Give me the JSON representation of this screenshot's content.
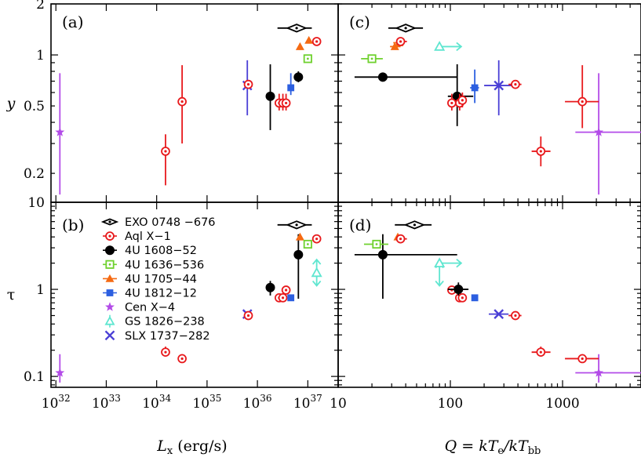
{
  "chart_data": {
    "type": "scatter",
    "sources": [
      {
        "name": "EXO 0748 −676",
        "color": "#000000",
        "marker": "diamond-dot"
      },
      {
        "name": "Aql X−1",
        "color": "#e8191c",
        "marker": "circle-open-dot"
      },
      {
        "name": "4U 1608−52",
        "color": "#000000",
        "marker": "circle-filled"
      },
      {
        "name": "4U 1636−536",
        "color": "#6fd12e",
        "marker": "square-open-dot"
      },
      {
        "name": "4U 1705−44",
        "color": "#f56a12",
        "marker": "triangle-filled"
      },
      {
        "name": "4U 1812−12",
        "color": "#2c5fe0",
        "marker": "square-filled"
      },
      {
        "name": "Cen  X−4",
        "color": "#b34be8",
        "marker": "star"
      },
      {
        "name": "GS 1826−238",
        "color": "#5fe6d0",
        "marker": "triangle-open-arrow"
      },
      {
        "name": "SLX 1737−282",
        "color": "#4a3fd6",
        "marker": "cross-x"
      }
    ],
    "panels": [
      {
        "id": "a",
        "label": "(a)",
        "xscale": "log",
        "yscale": "log",
        "xlim": [
          8e+31,
          4e+37
        ],
        "ylim": [
          0.135,
          2.0
        ],
        "xlabel": "",
        "ylabel": "y",
        "points": [
          {
            "source": 6,
            "x": 1.2e+32,
            "y": 0.35,
            "yerr": [
              0.15,
              0.78
            ]
          },
          {
            "source": 1,
            "x": 1.5e+34,
            "y": 0.27,
            "yerr": [
              0.17,
              0.34
            ]
          },
          {
            "source": 1,
            "x": 3.2e+34,
            "y": 0.53,
            "yerr": [
              0.3,
              0.87
            ]
          },
          {
            "source": 8,
            "x": 6.3e+35,
            "y": 0.66,
            "yerr": [
              0.44,
              0.93
            ]
          },
          {
            "source": 1,
            "x": 6.6e+35,
            "y": 0.67
          },
          {
            "source": 2,
            "x": 1.8e+36,
            "y": 0.57,
            "yerr": [
              0.36,
              0.88
            ]
          },
          {
            "source": 1,
            "x": 2.7e+36,
            "y": 0.52,
            "yerr": [
              0.47,
              0.59
            ]
          },
          {
            "source": 1,
            "x": 3.2e+36,
            "y": 0.52,
            "yerr": [
              0.47,
              0.59
            ]
          },
          {
            "source": 1,
            "x": 3.7e+36,
            "y": 0.52,
            "yerr": [
              0.47,
              0.59
            ]
          },
          {
            "source": 5,
            "x": 4.6e+36,
            "y": 0.64,
            "yerr": [
              0.58,
              0.78
            ]
          },
          {
            "source": 2,
            "x": 6.5e+36,
            "y": 0.74,
            "yerr": [
              0.69,
              0.8
            ]
          },
          {
            "source": 4,
            "x": 7e+36,
            "y": 1.12,
            "yerr": [
              1.07,
              1.17
            ]
          },
          {
            "source": 3,
            "x": 1e+37,
            "y": 0.95,
            "yerr": [
              0.91,
              0.99
            ]
          },
          {
            "source": 4,
            "x": 1.05e+37,
            "y": 1.22
          },
          {
            "source": 1,
            "x": 1.5e+37,
            "y": 1.2
          },
          {
            "source": 0,
            "x": 6e+36,
            "y": 1.44,
            "xerr": [
              2.5e+36,
              1.2e+37
            ]
          }
        ]
      },
      {
        "id": "b",
        "label": "(b)",
        "xscale": "log",
        "yscale": "log",
        "xlim": [
          8e+31,
          4e+37
        ],
        "ylim": [
          0.075,
          10
        ],
        "xlabel": "L_x (erg/s)",
        "ylabel": "τ",
        "points": [
          {
            "source": 6,
            "x": 1.2e+32,
            "y": 0.11,
            "yerr": [
              0.085,
              0.18
            ]
          },
          {
            "source": 1,
            "x": 1.5e+34,
            "y": 0.19,
            "yerr": [
              0.17,
              0.22
            ]
          },
          {
            "source": 1,
            "x": 3.2e+34,
            "y": 0.16,
            "yerr": [
              0.15,
              0.18
            ]
          },
          {
            "source": 8,
            "x": 6.3e+35,
            "y": 0.52
          },
          {
            "source": 1,
            "x": 6.6e+35,
            "y": 0.5
          },
          {
            "source": 2,
            "x": 1.8e+36,
            "y": 1.05,
            "yerr": [
              0.85,
              1.25
            ]
          },
          {
            "source": 1,
            "x": 2.7e+36,
            "y": 0.8
          },
          {
            "source": 1,
            "x": 3.2e+36,
            "y": 0.8
          },
          {
            "source": 1,
            "x": 3.7e+36,
            "y": 0.98
          },
          {
            "source": 5,
            "x": 4.6e+36,
            "y": 0.8
          },
          {
            "source": 2,
            "x": 6.5e+36,
            "y": 2.5,
            "yerr": [
              0.78,
              4.3
            ]
          },
          {
            "source": 4,
            "x": 7e+36,
            "y": 4.0
          },
          {
            "source": 3,
            "x": 1e+37,
            "y": 3.3
          },
          {
            "source": 1,
            "x": 1.5e+37,
            "y": 3.8
          },
          {
            "source": 7,
            "x": 1.5e+37,
            "y": 1.55,
            "yerr": [
              1.1,
              2.2
            ]
          },
          {
            "source": 0,
            "x": 6e+36,
            "y": 5.5,
            "xerr": [
              2.5e+36,
              1.2e+37
            ]
          }
        ]
      },
      {
        "id": "c",
        "label": "(c)",
        "xscale": "log",
        "yscale": "log",
        "xlim": [
          10,
          5000
        ],
        "ylim": [
          0.135,
          2.0
        ],
        "xlabel": "",
        "ylabel": "",
        "points": [
          {
            "source": 6,
            "x": 2100,
            "y": 0.35,
            "xerr": [
              1300,
              5000
            ],
            "yerr": [
              0.15,
              0.78
            ]
          },
          {
            "source": 1,
            "x": 640,
            "y": 0.27,
            "xerr": [
              530,
              780
            ],
            "yerr": [
              0.22,
              0.33
            ]
          },
          {
            "source": 1,
            "x": 1500,
            "y": 0.53,
            "xerr": [
              1050,
              2100
            ],
            "yerr": [
              0.37,
              0.87
            ]
          },
          {
            "source": 8,
            "x": 270,
            "y": 0.66,
            "xerr": [
              200,
              380
            ],
            "yerr": [
              0.44,
              0.93
            ]
          },
          {
            "source": 1,
            "x": 380,
            "y": 0.67,
            "xerr": [
              330,
              430
            ]
          },
          {
            "source": 5,
            "x": 165,
            "y": 0.64,
            "xerr": [
              150,
              180
            ],
            "yerr": [
              0.52,
              0.82
            ]
          },
          {
            "source": 2,
            "x": 25,
            "y": 0.74,
            "xerr": [
              14,
              115
            ]
          },
          {
            "source": 2,
            "x": 115,
            "y": 0.57,
            "xerr": [
              95,
              160
            ],
            "yerr": [
              0.38,
              0.88
            ]
          },
          {
            "source": 1,
            "x": 103,
            "y": 0.52,
            "yerr": [
              0.47,
              0.59
            ]
          },
          {
            "source": 1,
            "x": 121,
            "y": 0.52,
            "yerr": [
              0.47,
              0.59
            ]
          },
          {
            "source": 1,
            "x": 128,
            "y": 0.54,
            "yerr": [
              0.49,
              0.6
            ]
          },
          {
            "source": 3,
            "x": 20,
            "y": 0.95,
            "xerr": [
              16,
              25
            ]
          },
          {
            "source": 4,
            "x": 32,
            "y": 1.12,
            "xerr": [
              29,
              36
            ]
          },
          {
            "source": 4,
            "x": 35,
            "y": 1.18,
            "xerr": [
              31,
              39
            ]
          },
          {
            "source": 1,
            "x": 36,
            "y": 1.2,
            "xerr": [
              33,
              41
            ]
          },
          {
            "source": 7,
            "x": 80,
            "y": 1.12,
            "xerr": [
              80,
              125
            ]
          },
          {
            "source": 0,
            "x": 40,
            "y": 1.44,
            "xerr": [
              28,
              57
            ]
          }
        ]
      },
      {
        "id": "d",
        "label": "(d)",
        "xscale": "log",
        "yscale": "log",
        "xlim": [
          10,
          5000
        ],
        "ylim": [
          0.075,
          10
        ],
        "xlabel": "Q = kT_e/kT_bb",
        "ylabel": "",
        "points": [
          {
            "source": 6,
            "x": 2100,
            "y": 0.11,
            "xerr": [
              1300,
              5000
            ],
            "yerr": [
              0.085,
              0.18
            ]
          },
          {
            "source": 1,
            "x": 640,
            "y": 0.19,
            "xerr": [
              530,
              780
            ],
            "yerr": [
              0.17,
              0.22
            ]
          },
          {
            "source": 1,
            "x": 1500,
            "y": 0.16,
            "xerr": [
              1050,
              2100
            ],
            "yerr": [
              0.15,
              0.18
            ]
          },
          {
            "source": 8,
            "x": 270,
            "y": 0.52,
            "xerr": [
              220,
              330
            ]
          },
          {
            "source": 1,
            "x": 380,
            "y": 0.5,
            "xerr": [
              330,
              430
            ]
          },
          {
            "source": 5,
            "x": 165,
            "y": 0.8
          },
          {
            "source": 1,
            "x": 121,
            "y": 0.8
          },
          {
            "source": 1,
            "x": 128,
            "y": 0.8
          },
          {
            "source": 1,
            "x": 103,
            "y": 0.98
          },
          {
            "source": 2,
            "x": 118,
            "y": 1.0,
            "xerr": [
              95,
              145
            ],
            "yerr": [
              0.85,
              1.2
            ]
          },
          {
            "source": 7,
            "x": 80,
            "y": 2.0,
            "xerr": [
              80,
              125
            ],
            "yerr": [
              1.1,
              2.0
            ]
          },
          {
            "source": 2,
            "x": 25,
            "y": 2.5,
            "xerr": [
              14,
              115
            ],
            "yerr": [
              0.78,
              4.3
            ]
          },
          {
            "source": 3,
            "x": 22,
            "y": 3.3,
            "xerr": [
              17,
              28
            ]
          },
          {
            "source": 4,
            "x": 34,
            "y": 4.0
          },
          {
            "source": 1,
            "x": 36,
            "y": 3.8,
            "xerr": [
              33,
              41
            ]
          },
          {
            "source": 0,
            "x": 48,
            "y": 5.5,
            "xerr": [
              32,
              68
            ]
          }
        ]
      }
    ],
    "axis_text": {
      "xlabel_left": "L",
      "xlabel_left_sub": "x",
      "xlabel_left_unit": " (erg/s)",
      "xlabel_right": "Q = kT",
      "xlabel_right_sub1": "e",
      "xlabel_right_mid": "/kT",
      "xlabel_right_sub2": "bb",
      "ylabel_top": "y",
      "ylabel_bottom": "τ"
    },
    "ticks": {
      "top_y": [
        "0.2",
        "0.5",
        "1",
        "2"
      ],
      "bottom_y": [
        "0.1",
        "1",
        "10"
      ],
      "left_x": [
        "32",
        "33",
        "34",
        "35",
        "36",
        "37"
      ],
      "left_x_base": "10",
      "right_x": [
        "10",
        "100",
        "1000"
      ]
    }
  }
}
